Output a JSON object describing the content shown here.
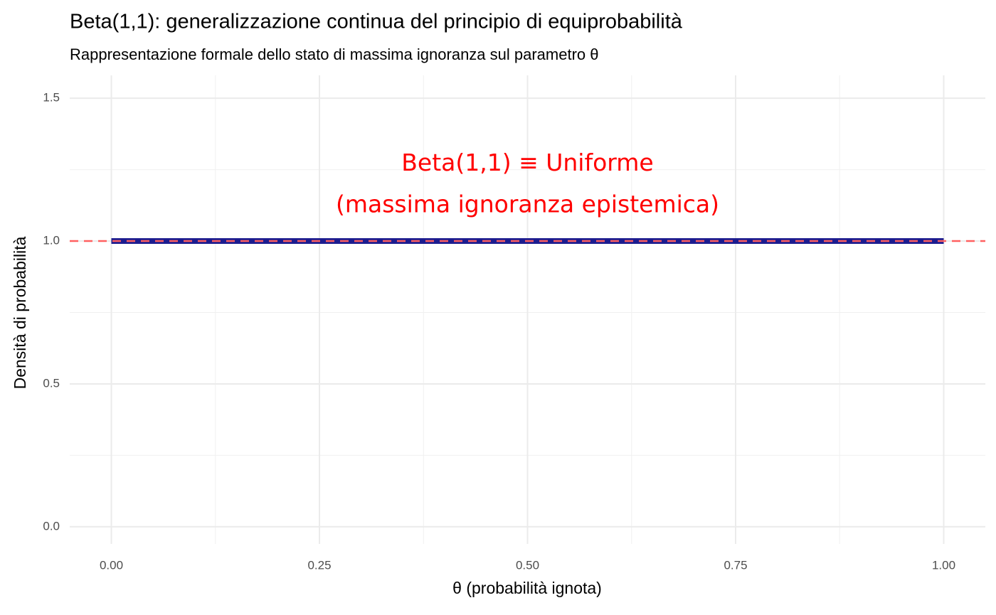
{
  "chart_data": {
    "type": "line",
    "title": "Beta(1,1): generalizzazione continua del principio di equiprobabilità",
    "subtitle": "Rappresentazione formale dello stato di massima ignoranza sul parametro θ",
    "x_label": "θ  (probabilità ignota)",
    "y_label": "Densità di probabilità",
    "series": [
      {
        "x": [
          0,
          1
        ],
        "values": [
          1,
          1
        ],
        "color": "#1c1c8f"
      }
    ],
    "hline": {
      "y": 1,
      "color": "#ff6060",
      "dashed": true
    },
    "annotations": [
      {
        "text": "Beta(1,1) ≡ Uniforme",
        "x": 0.5,
        "y": 1.27,
        "color": "#ff0000"
      },
      {
        "text": "(massima ignoranza epistemica)",
        "x": 0.5,
        "y": 1.125,
        "color": "#ff0000"
      }
    ],
    "xlim": [
      -0.05,
      1.05
    ],
    "ylim": [
      -0.06,
      1.58
    ],
    "xticks": [
      {
        "value": 0,
        "label": "0.00"
      },
      0.25,
      {
        "value": 0.5,
        "label": "0.50"
      },
      0.75,
      {
        "value": 1,
        "label": "1.00"
      }
    ],
    "yticks": [
      {
        "value": 0,
        "label": "0.0"
      },
      0.5,
      {
        "value": 1,
        "label": "1.0"
      },
      1.5
    ],
    "x_minor_ticks": [
      0.125,
      0.375,
      0.625,
      0.875
    ],
    "y_minor_ticks": [
      0.25,
      0.75,
      1.25
    ],
    "grid": true
  }
}
